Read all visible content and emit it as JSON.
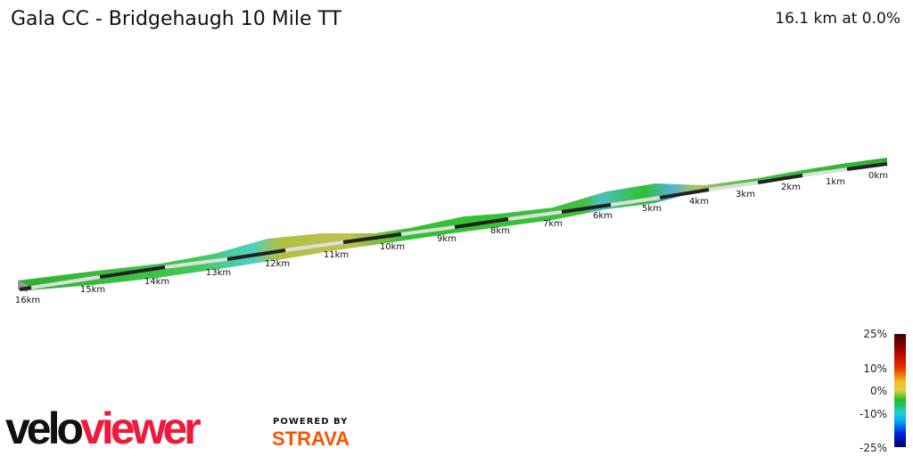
{
  "header": {
    "title": "Gala CC - Bridgehaugh 10 Mile TT",
    "summary": "16.1 km at 0.0%"
  },
  "profile": {
    "km_labels": [
      "0km",
      "1km",
      "2km",
      "3km",
      "4km",
      "5km",
      "6km",
      "7km",
      "8km",
      "9km",
      "10km",
      "11km",
      "12km",
      "13km",
      "14km",
      "15km",
      "16km"
    ]
  },
  "legend": {
    "labels": [
      "25%",
      "10%",
      "0%",
      "-10%",
      "-25%"
    ]
  },
  "branding": {
    "logo_part1": "velo",
    "logo_part2": "viewer",
    "powered_by": "POWERED BY",
    "strava": "STRAVA"
  }
}
